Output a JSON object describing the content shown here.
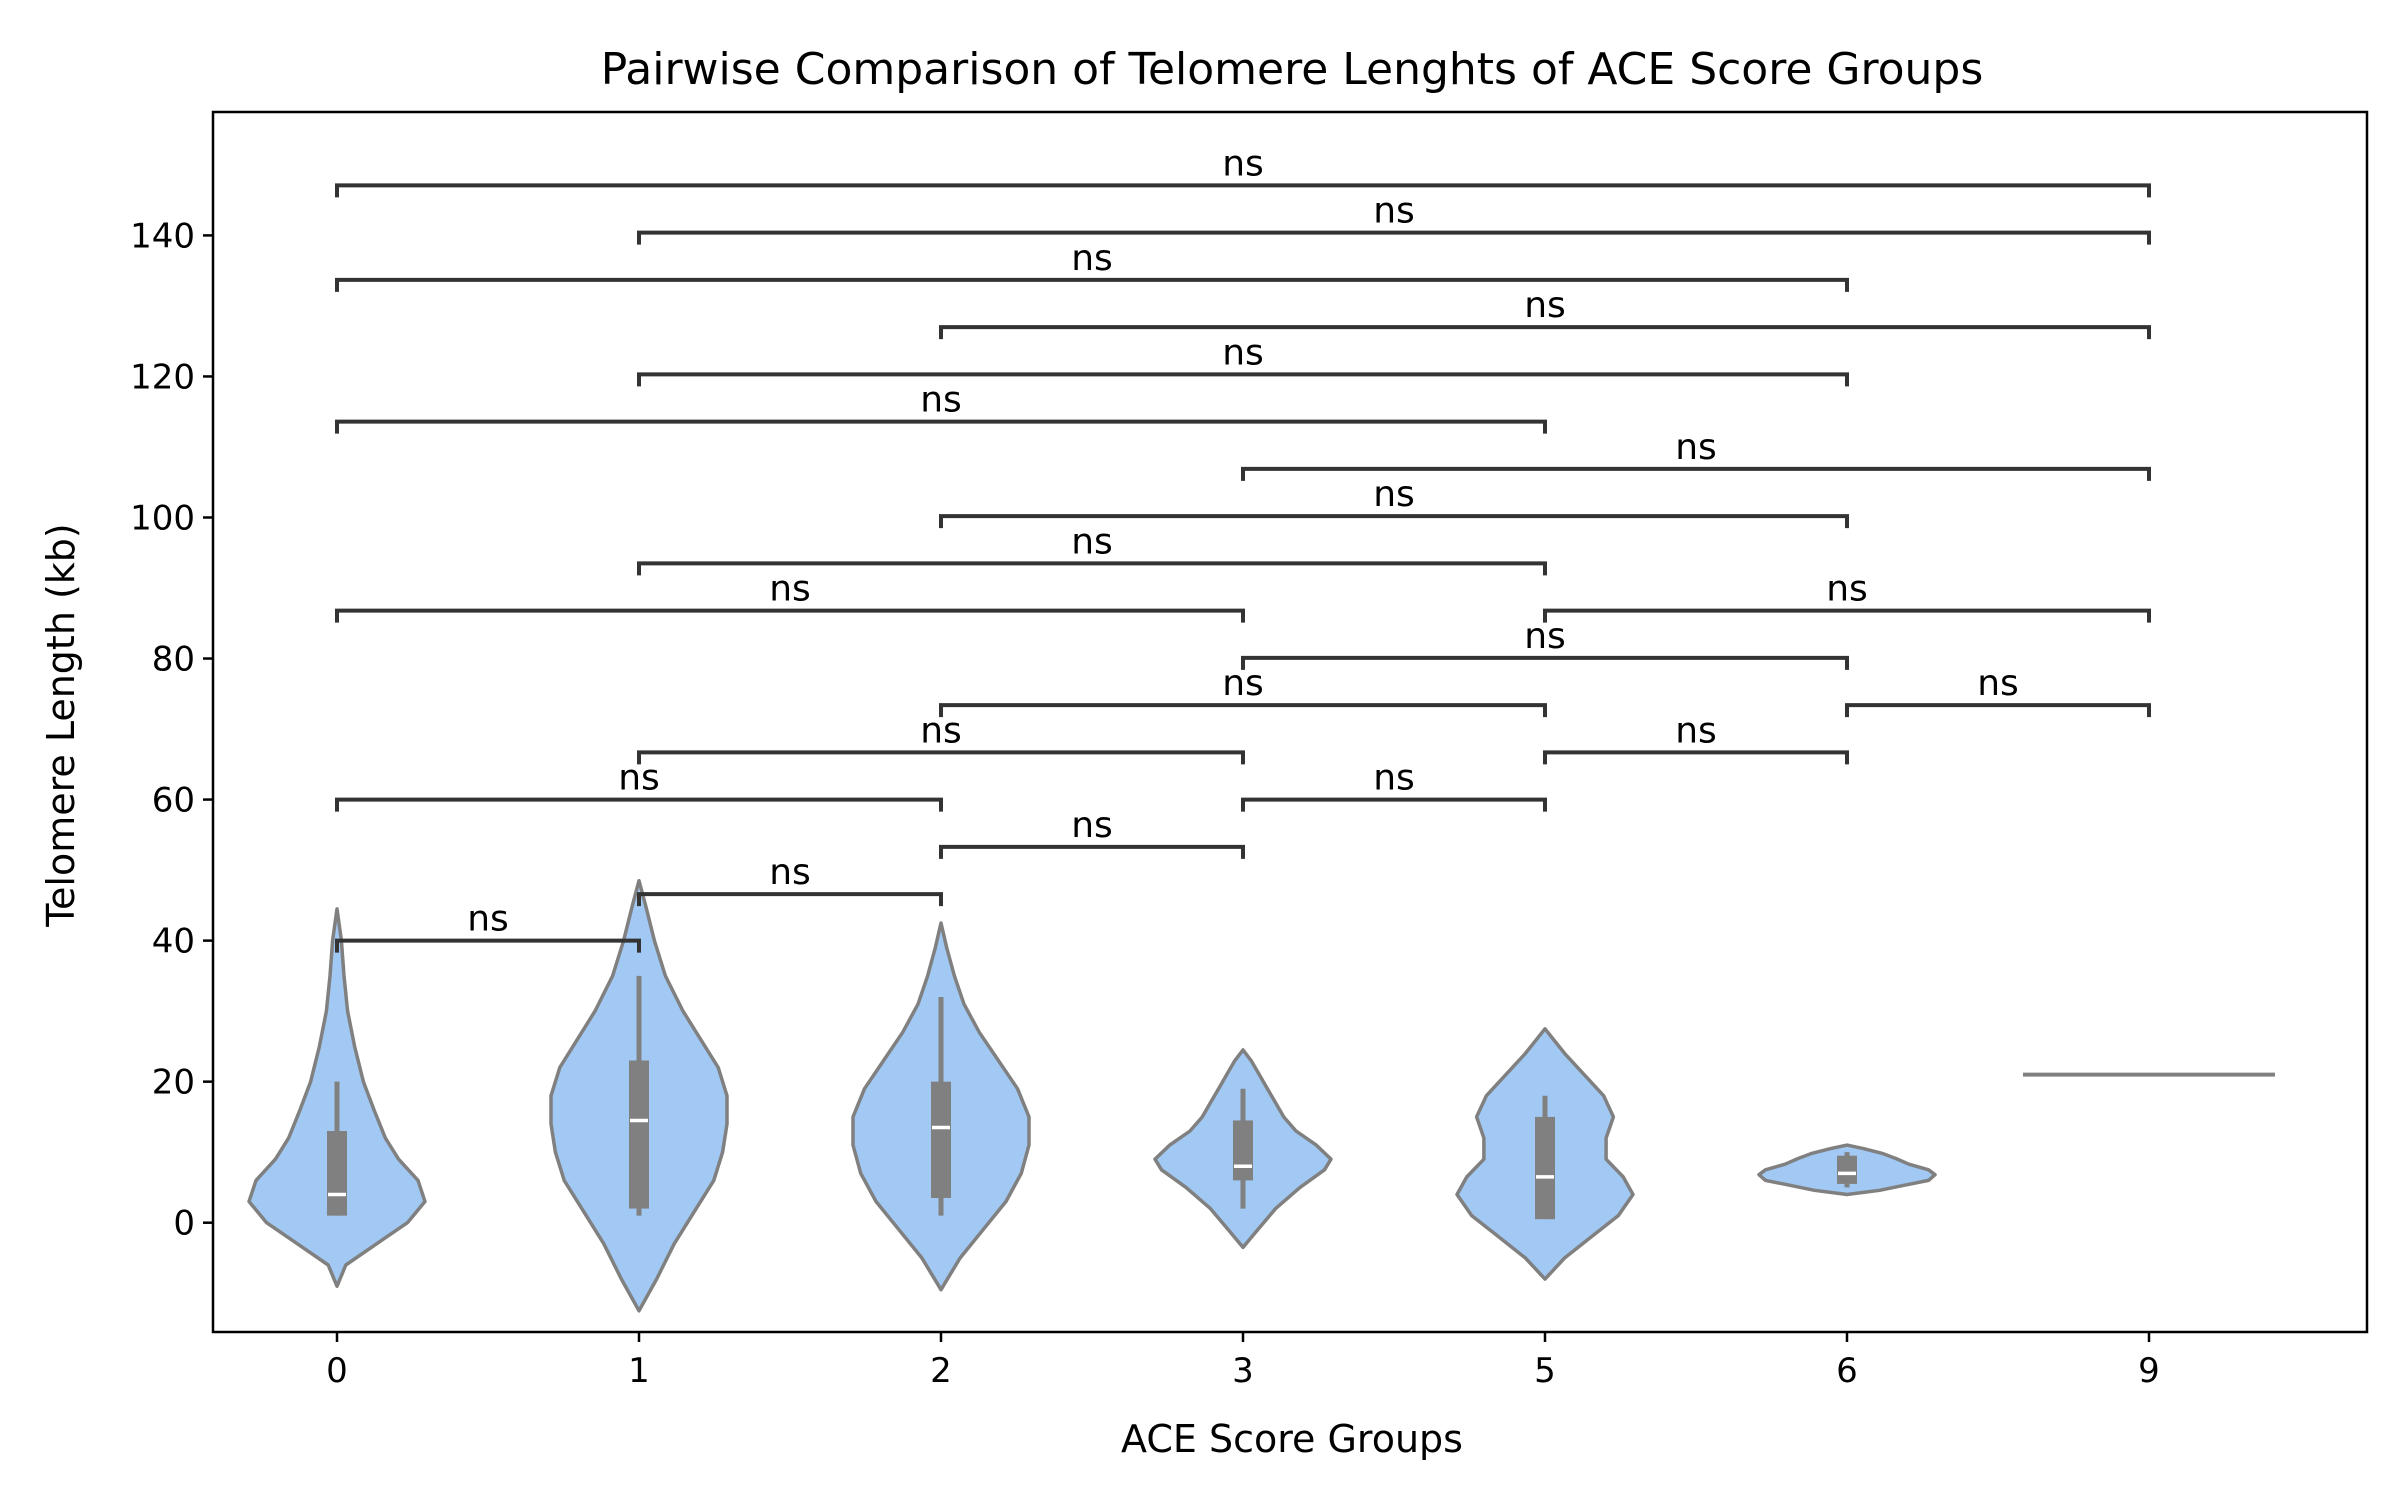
{
  "chart_data": {
    "type": "violin",
    "title": "Pairwise Comparison of Telomere Lenghts of ACE Score Groups",
    "xlabel": "ACE Score Groups",
    "ylabel": "Telomere Length (kb)",
    "categories": [
      "0",
      "1",
      "2",
      "3",
      "5",
      "6",
      "9"
    ],
    "ylim": [
      -15.5,
      157.5
    ],
    "yticks": [
      0,
      20,
      40,
      60,
      80,
      100,
      120,
      140
    ],
    "ytick_labels": [
      "0",
      "20",
      "40",
      "60",
      "80",
      "100",
      "120",
      "140"
    ],
    "grid": false,
    "legend": "none",
    "colors": {
      "violin_fill": "#a1c9f4",
      "violin_edge": "#808080",
      "box": "#808080",
      "median": "#ffffff",
      "bracket": "#333333"
    },
    "groups": [
      {
        "category": "0",
        "min": -9,
        "max": 44.5,
        "q1": 1,
        "median": 4,
        "q3": 13,
        "whisker_low": 1,
        "whisker_high": 20,
        "profile": [
          [
            -9,
            0.0
          ],
          [
            -6,
            0.01
          ],
          [
            -3,
            0.045
          ],
          [
            0,
            0.08
          ],
          [
            3,
            0.1
          ],
          [
            6,
            0.092
          ],
          [
            9,
            0.07
          ],
          [
            12,
            0.055
          ],
          [
            16,
            0.042
          ],
          [
            20,
            0.03
          ],
          [
            25,
            0.02
          ],
          [
            30,
            0.012
          ],
          [
            35,
            0.008
          ],
          [
            40,
            0.005
          ],
          [
            44.5,
            0.0
          ]
        ]
      },
      {
        "category": "1",
        "min": -12.5,
        "max": 48.5,
        "q1": 2,
        "median": 14.5,
        "q3": 23,
        "whisker_low": 1,
        "whisker_high": 35,
        "profile": [
          [
            -12.5,
            0.0
          ],
          [
            -8,
            0.008
          ],
          [
            -3,
            0.016
          ],
          [
            2,
            0.026
          ],
          [
            6,
            0.034
          ],
          [
            10,
            0.038
          ],
          [
            14,
            0.04
          ],
          [
            18,
            0.04
          ],
          [
            22,
            0.036
          ],
          [
            26,
            0.028
          ],
          [
            30,
            0.02
          ],
          [
            35,
            0.012
          ],
          [
            40,
            0.007
          ],
          [
            45,
            0.003
          ],
          [
            48.5,
            0.0
          ]
        ]
      },
      {
        "category": "2",
        "min": -9.5,
        "max": 42.5,
        "q1": 3.5,
        "median": 13.5,
        "q3": 20,
        "whisker_low": 1,
        "whisker_high": 32,
        "profile": [
          [
            -9.5,
            0.0
          ],
          [
            -5,
            0.01
          ],
          [
            -1,
            0.022
          ],
          [
            3,
            0.034
          ],
          [
            7,
            0.042
          ],
          [
            11,
            0.046
          ],
          [
            15,
            0.046
          ],
          [
            19,
            0.04
          ],
          [
            23,
            0.03
          ],
          [
            27,
            0.02
          ],
          [
            31,
            0.012
          ],
          [
            35,
            0.007
          ],
          [
            39,
            0.003
          ],
          [
            42.5,
            0.0
          ]
        ]
      },
      {
        "category": "3",
        "min": -3.5,
        "max": 24.5,
        "q1": 6,
        "median": 8,
        "q3": 14.5,
        "whisker_low": 2,
        "whisker_high": 19,
        "profile": [
          [
            -3.5,
            0.0
          ],
          [
            -1,
            0.018
          ],
          [
            2,
            0.04
          ],
          [
            5,
            0.07
          ],
          [
            7.5,
            0.1
          ],
          [
            9,
            0.108
          ],
          [
            11,
            0.09
          ],
          [
            13,
            0.065
          ],
          [
            15,
            0.05
          ],
          [
            17,
            0.04
          ],
          [
            19,
            0.03
          ],
          [
            21,
            0.02
          ],
          [
            23,
            0.01
          ],
          [
            24.5,
            0.0
          ]
        ]
      },
      {
        "category": "5",
        "min": -8,
        "max": 27.5,
        "q1": 0.5,
        "median": 6.5,
        "q3": 15,
        "whisker_low": 0.5,
        "whisker_high": 18,
        "profile": [
          [
            -8,
            0.0
          ],
          [
            -5,
            0.016
          ],
          [
            -2,
            0.038
          ],
          [
            1,
            0.06
          ],
          [
            4,
            0.072
          ],
          [
            6.5,
            0.064
          ],
          [
            9,
            0.05
          ],
          [
            12,
            0.05
          ],
          [
            15,
            0.056
          ],
          [
            18,
            0.048
          ],
          [
            21,
            0.032
          ],
          [
            24,
            0.016
          ],
          [
            27.5,
            0.0
          ]
        ]
      },
      {
        "category": "6",
        "min": 4,
        "max": 11,
        "q1": 5.5,
        "median": 7,
        "q3": 9.5,
        "whisker_low": 5,
        "whisker_high": 10,
        "profile": [
          [
            4,
            0.0
          ],
          [
            4.6,
            0.2
          ],
          [
            5.3,
            0.35
          ],
          [
            6,
            0.5
          ],
          [
            6.8,
            0.54
          ],
          [
            7.5,
            0.5
          ],
          [
            8.3,
            0.38
          ],
          [
            9.1,
            0.3
          ],
          [
            9.8,
            0.22
          ],
          [
            10.5,
            0.1
          ],
          [
            11,
            0.0
          ]
        ]
      },
      {
        "category": "9",
        "single_value": 21
      }
    ],
    "brackets": [
      {
        "from": "0",
        "to": "1",
        "y": 40,
        "label": "ns"
      },
      {
        "from": "1",
        "to": "2",
        "y": 46.6,
        "label": "ns"
      },
      {
        "from": "2",
        "to": "3",
        "y": 53.3,
        "label": "ns"
      },
      {
        "from": "0",
        "to": "2",
        "y": 60,
        "label": "ns"
      },
      {
        "from": "3",
        "to": "5",
        "y": 60,
        "label": "ns"
      },
      {
        "from": "1",
        "to": "3",
        "y": 66.7,
        "label": "ns"
      },
      {
        "from": "5",
        "to": "6",
        "y": 66.7,
        "label": "ns"
      },
      {
        "from": "2",
        "to": "5",
        "y": 73.4,
        "label": "ns"
      },
      {
        "from": "6",
        "to": "9",
        "y": 73.4,
        "label": "ns"
      },
      {
        "from": "3",
        "to": "6",
        "y": 80.1,
        "label": "ns"
      },
      {
        "from": "0",
        "to": "3",
        "y": 86.8,
        "label": "ns"
      },
      {
        "from": "5",
        "to": "9",
        "y": 86.8,
        "label": "ns"
      },
      {
        "from": "1",
        "to": "5",
        "y": 93.5,
        "label": "ns"
      },
      {
        "from": "2",
        "to": "6",
        "y": 100.2,
        "label": "ns"
      },
      {
        "from": "3",
        "to": "9",
        "y": 106.9,
        "label": "ns"
      },
      {
        "from": "0",
        "to": "5",
        "y": 113.6,
        "label": "ns"
      },
      {
        "from": "1",
        "to": "6",
        "y": 120.3,
        "label": "ns"
      },
      {
        "from": "2",
        "to": "9",
        "y": 127,
        "label": "ns"
      },
      {
        "from": "0",
        "to": "6",
        "y": 133.7,
        "label": "ns"
      },
      {
        "from": "1",
        "to": "9",
        "y": 140.4,
        "label": "ns"
      },
      {
        "from": "0",
        "to": "9",
        "y": 147.1,
        "label": "ns"
      }
    ]
  }
}
